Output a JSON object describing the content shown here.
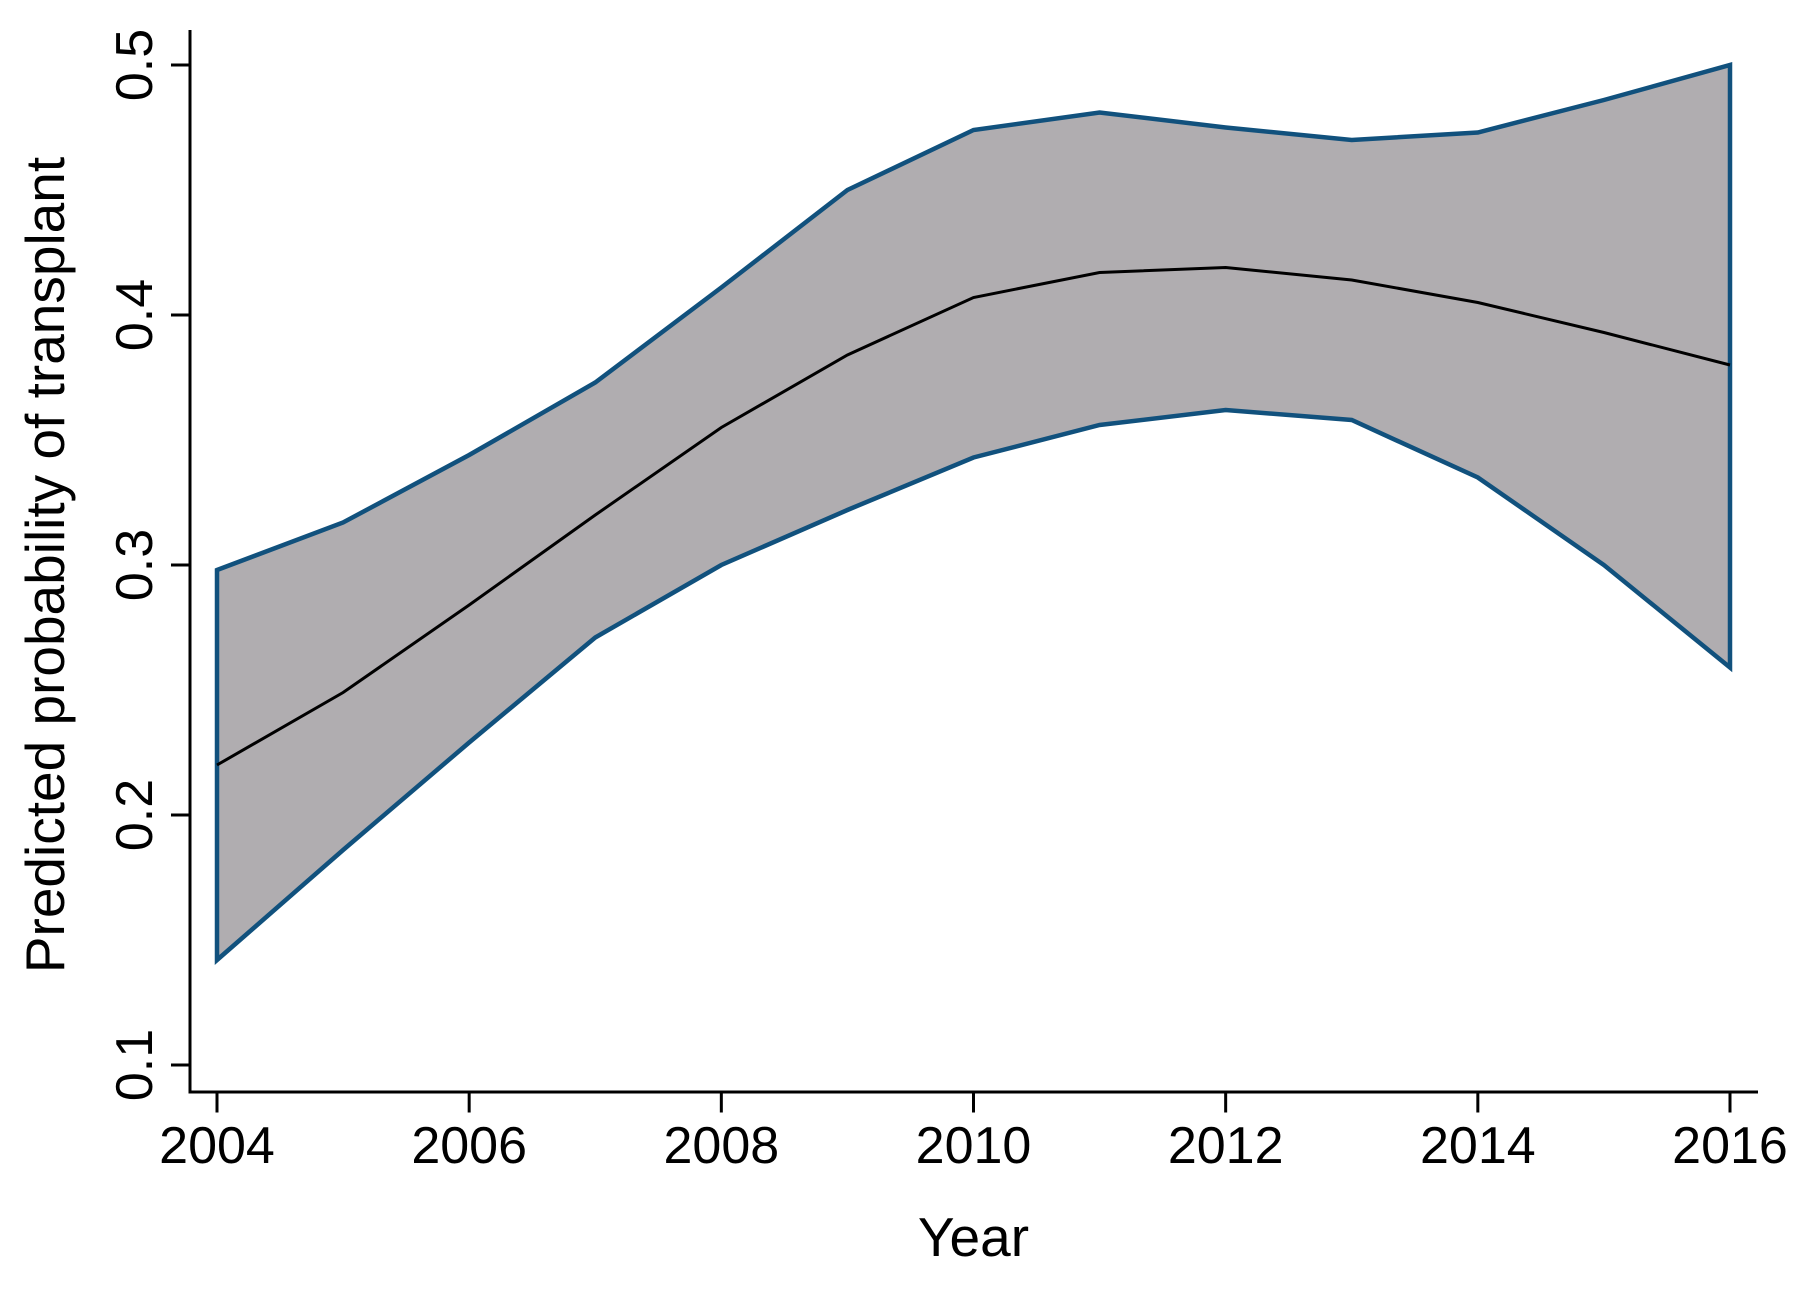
{
  "figure": {
    "background": "#ffffff"
  },
  "chart_data": {
    "type": "line",
    "title": "",
    "xlabel": "Year",
    "ylabel": "Predicted probability of transplant",
    "x": [
      2004,
      2005,
      2006,
      2007,
      2008,
      2009,
      2010,
      2011,
      2012,
      2013,
      2014,
      2015,
      2016
    ],
    "series": [
      {
        "name": "predicted-probability",
        "role": "mean-line",
        "color": "#000000",
        "values": [
          0.22,
          0.249,
          0.284,
          0.32,
          0.355,
          0.384,
          0.407,
          0.417,
          0.419,
          0.414,
          0.405,
          0.393,
          0.38
        ]
      },
      {
        "name": "ci-upper-bound",
        "role": "band-upper",
        "color": "#11517d",
        "values": [
          0.298,
          0.317,
          0.344,
          0.373,
          0.411,
          0.45,
          0.474,
          0.481,
          0.475,
          0.47,
          0.473,
          0.486,
          0.5
        ]
      },
      {
        "name": "ci-lower-bound",
        "role": "band-lower",
        "color": "#11517d",
        "values": [
          0.142,
          0.186,
          0.229,
          0.271,
          0.3,
          0.322,
          0.343,
          0.356,
          0.362,
          0.358,
          0.335,
          0.3,
          0.259
        ]
      }
    ],
    "band_fill": "#b0adb0",
    "band_border": "#11517d",
    "axis_color": "#000000",
    "xlim": [
      2004,
      2016
    ],
    "ylim": [
      0.1,
      0.5
    ],
    "x_ticks": [
      2004,
      2006,
      2008,
      2010,
      2012,
      2014,
      2016
    ],
    "x_tick_labels": [
      "2004",
      "2006",
      "2008",
      "2010",
      "2012",
      "2014",
      "2016"
    ],
    "y_ticks": [
      0.1,
      0.2,
      0.3,
      0.4,
      0.5
    ],
    "y_tick_labels": [
      "0.1",
      "0.2",
      "0.3",
      "0.4",
      "0.5"
    ],
    "grid": false,
    "legend": false
  }
}
